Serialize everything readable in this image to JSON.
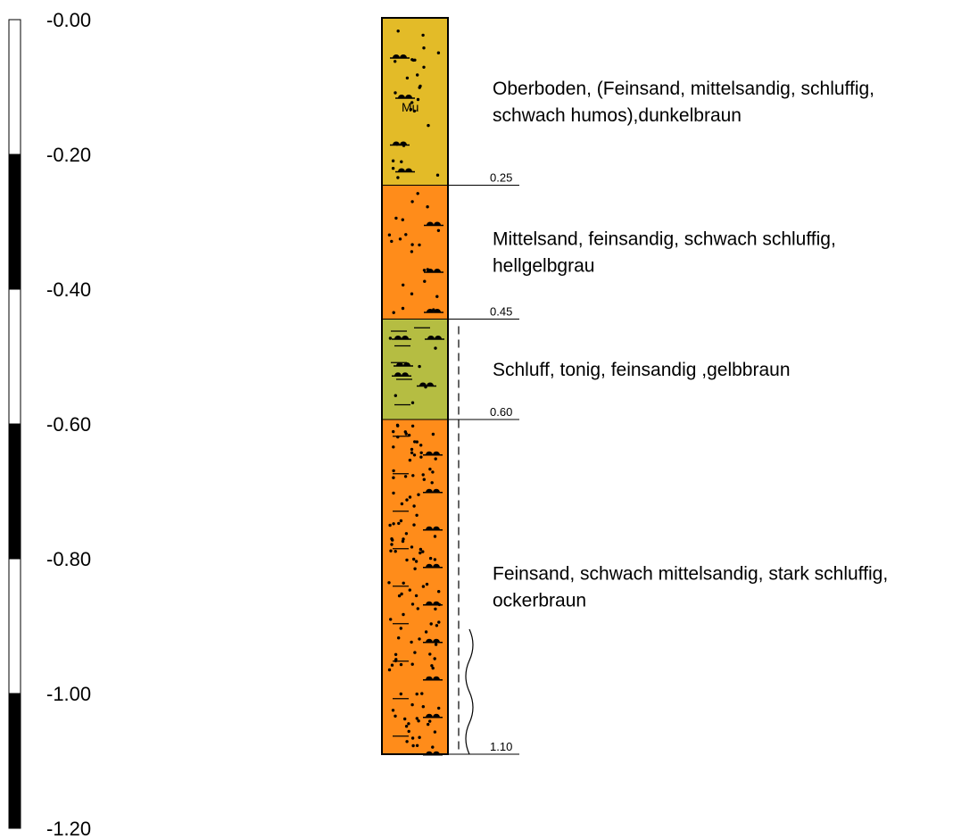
{
  "scale": {
    "labels": [
      "-0.00",
      "-0.20",
      "-0.40",
      "-0.60",
      "-0.80",
      "-1.00",
      "-1.20"
    ],
    "segment_colors": [
      "#ffffff",
      "#000000",
      "#ffffff",
      "#000000",
      "#ffffff",
      "#000000"
    ]
  },
  "layers": [
    {
      "top": 0.0,
      "bottom": 0.25,
      "fill": "#e3bb28",
      "pattern": "humus-sand",
      "code": "Mu",
      "depth_label": "0.25",
      "description_lines": [
        "Oberboden, (Feinsand, mittelsandig, schluffig,",
        "schwach humos),dunkelbraun"
      ]
    },
    {
      "top": 0.25,
      "bottom": 0.45,
      "fill": "#ff8c1a",
      "pattern": "sand",
      "code": "",
      "depth_label": "0.45",
      "description_lines": [
        "Mittelsand, feinsandig, schwach schluffig,",
        "hellgelbgrau"
      ]
    },
    {
      "top": 0.45,
      "bottom": 0.6,
      "fill": "#b5bd42",
      "pattern": "silt",
      "code": "",
      "depth_label": "0.60",
      "description_lines": [
        "Schluff, tonig, feinsandig ,gelbbraun"
      ]
    },
    {
      "top": 0.6,
      "bottom": 1.1,
      "fill": "#ff8c1a",
      "pattern": "silty-sand",
      "code": "",
      "depth_label": "1.10",
      "description_lines": [
        "Feinsand, schwach mittelsandig, stark schluffig,",
        "ockerbraun"
      ]
    }
  ],
  "moisture_marks": [
    {
      "type": "dashed",
      "from": 0.45,
      "to": 1.1
    },
    {
      "type": "wavy",
      "from": 0.9,
      "to": 1.1
    }
  ]
}
